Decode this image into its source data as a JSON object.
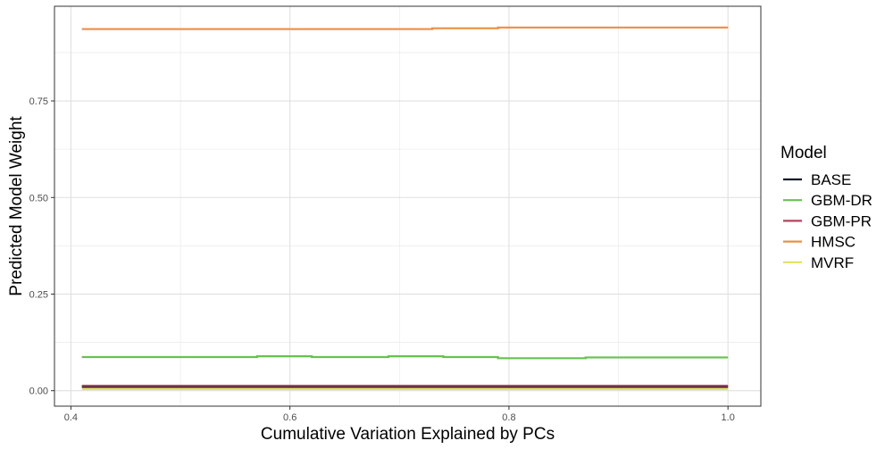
{
  "chart_data": {
    "type": "line",
    "xlabel": "Cumulative Variation Explained by PCs",
    "ylabel": "Predicted Model Weight",
    "xlim": [
      0.385,
      1.03
    ],
    "ylim": [
      -0.04,
      0.995
    ],
    "x_ticks": [
      0.4,
      0.6,
      0.8,
      1.0
    ],
    "x_tick_labels": [
      "0.4",
      "0.6",
      "0.8",
      "1.0"
    ],
    "y_ticks": [
      0.0,
      0.25,
      0.5,
      0.75
    ],
    "y_tick_labels": [
      "0.00",
      "0.25",
      "0.50",
      "0.75"
    ],
    "grid": true,
    "legend": {
      "title": "Model",
      "position": "right"
    },
    "series": [
      {
        "name": "BASE",
        "color": "#0d1b2a",
        "x": [
          0.41,
          0.56,
          0.62,
          0.7,
          0.73,
          0.79,
          0.87,
          1.0
        ],
        "y": [
          0.01,
          0.01,
          0.01,
          0.01,
          0.01,
          0.01,
          0.01,
          0.01
        ]
      },
      {
        "name": "GBM-DR",
        "color": "#66c24f",
        "x": [
          0.41,
          0.57,
          0.62,
          0.69,
          0.74,
          0.79,
          0.87,
          1.0
        ],
        "y": [
          0.087,
          0.089,
          0.087,
          0.089,
          0.087,
          0.084,
          0.086,
          0.086
        ]
      },
      {
        "name": "GBM-PR",
        "color": "#b5425e",
        "x": [
          0.41,
          0.56,
          0.62,
          0.7,
          0.73,
          0.79,
          0.87,
          1.0
        ],
        "y": [
          0.013,
          0.013,
          0.013,
          0.013,
          0.013,
          0.013,
          0.013,
          0.013
        ]
      },
      {
        "name": "HMSC",
        "color": "#ee8d45",
        "x": [
          0.41,
          0.56,
          0.62,
          0.7,
          0.73,
          0.79,
          0.87,
          1.0
        ],
        "y": [
          0.936,
          0.936,
          0.936,
          0.936,
          0.938,
          0.94,
          0.94,
          0.94
        ]
      },
      {
        "name": "MVRF",
        "color": "#e1e25a",
        "x": [
          0.41,
          0.56,
          0.62,
          0.7,
          0.73,
          0.79,
          0.87,
          1.0
        ],
        "y": [
          0.004,
          0.004,
          0.004,
          0.004,
          0.004,
          0.004,
          0.004,
          0.004
        ]
      }
    ]
  }
}
